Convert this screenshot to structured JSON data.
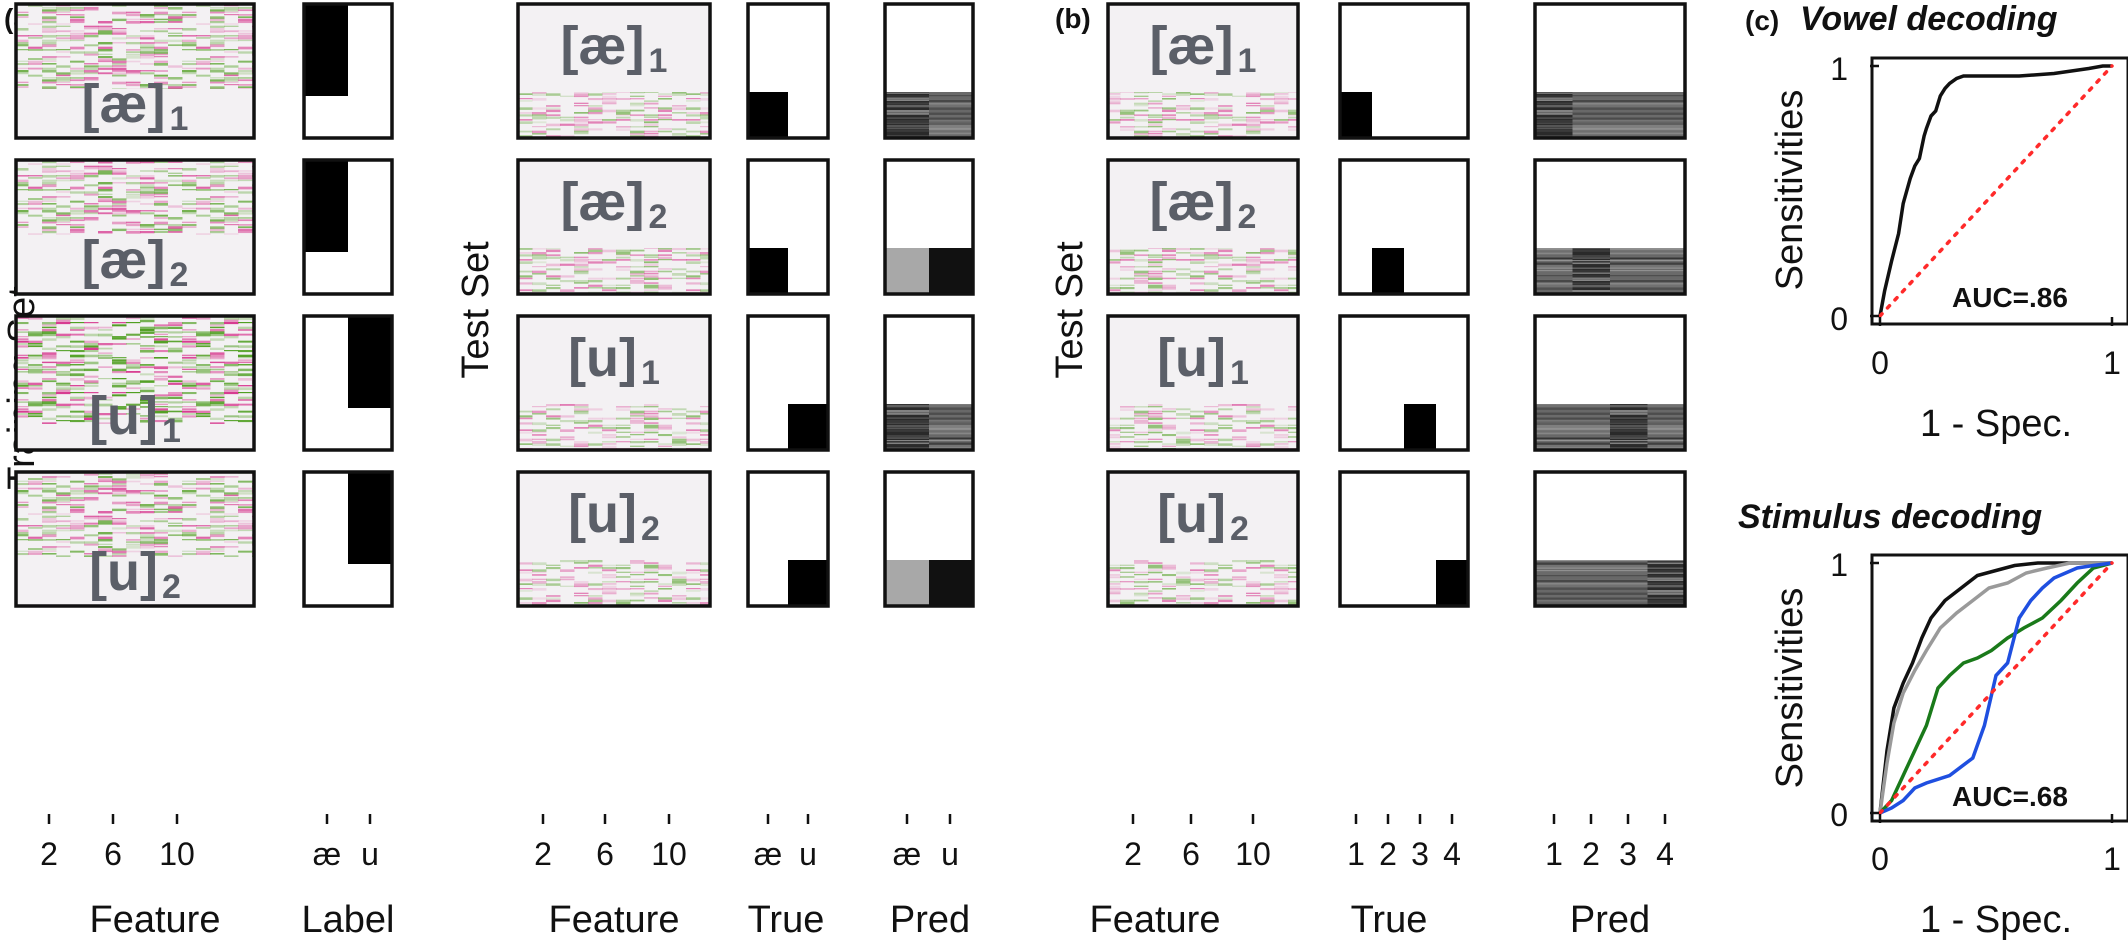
{
  "panel_labels": [
    "(a)",
    "(b)",
    "(c)"
  ],
  "colors": {
    "green": "#4a9c1a",
    "pink": "#d6338c",
    "background": "#f3f1f3",
    "frame": "#111111",
    "overlay_text": "#5b5f68",
    "chance_line": "#ff2a2a",
    "roc_series": [
      "#111111",
      "#9a9a9a",
      "#1a7a1a",
      "#1f4fe0"
    ]
  },
  "panel_a": {
    "training_label": "Training Set",
    "test_label": "Test Set",
    "training_overlays": [
      {
        "symbol": "[æ]",
        "sub": "1"
      },
      {
        "symbol": "[æ]",
        "sub": "2"
      },
      {
        "symbol": "[u]",
        "sub": "1"
      },
      {
        "symbol": "[u]",
        "sub": "2"
      }
    ],
    "test_overlays": [
      {
        "symbol": "[æ]",
        "sub": "1"
      },
      {
        "symbol": "[æ]",
        "sub": "2"
      },
      {
        "symbol": "[u]",
        "sub": "1"
      },
      {
        "symbol": "[u]",
        "sub": "2"
      }
    ],
    "feature_ticks": [
      "2",
      "6",
      "10"
    ],
    "label_ticks": [
      "æ",
      "u"
    ],
    "true_ticks": [
      "æ",
      "u"
    ],
    "pred_ticks": [
      "æ",
      "u"
    ],
    "xlabels": {
      "feature": "Feature",
      "label": "Label",
      "feature2": "Feature",
      "true": "True",
      "pred": "Pred"
    }
  },
  "panel_b": {
    "test_label": "Test Set",
    "overlays": [
      {
        "symbol": "[æ]",
        "sub": "1"
      },
      {
        "symbol": "[æ]",
        "sub": "2"
      },
      {
        "symbol": "[u]",
        "sub": "1"
      },
      {
        "symbol": "[u]",
        "sub": "2"
      }
    ],
    "feature_ticks": [
      "2",
      "6",
      "10"
    ],
    "true_ticks": [
      "1",
      "2",
      "3",
      "4"
    ],
    "pred_ticks": [
      "1",
      "2",
      "3",
      "4"
    ],
    "xlabels": {
      "feature": "Feature",
      "true": "True",
      "pred": "Pred"
    }
  },
  "chart_data": [
    {
      "type": "line",
      "title": "Vowel decoding",
      "xlabel": "1 - Spec.",
      "ylabel": "Sensitivities",
      "xlim": [
        0,
        1
      ],
      "ylim": [
        0,
        1
      ],
      "xticks": [
        "0",
        "1"
      ],
      "yticks": [
        "0",
        "1"
      ],
      "annotation": "AUC=.86",
      "series": [
        {
          "x": [
            0,
            0.02,
            0.05,
            0.08,
            0.1,
            0.13,
            0.15,
            0.17,
            0.19,
            0.2,
            0.22,
            0.24,
            0.26,
            0.28,
            0.3,
            0.33,
            0.36,
            0.42,
            0.6,
            0.75,
            0.9,
            0.96,
            1.0
          ],
          "y": [
            0,
            0.1,
            0.22,
            0.33,
            0.45,
            0.55,
            0.6,
            0.63,
            0.72,
            0.75,
            0.8,
            0.82,
            0.88,
            0.91,
            0.93,
            0.95,
            0.96,
            0.96,
            0.96,
            0.97,
            0.99,
            1.0,
            1.0
          ],
          "color": "#111111"
        },
        {
          "x": [
            0,
            1
          ],
          "y": [
            0,
            1
          ],
          "color": "#ff2a2a",
          "style": "dotted"
        }
      ]
    },
    {
      "type": "line",
      "title": "Stimulus decoding",
      "xlabel": "1 - Spec.",
      "ylabel": "Sensitivities",
      "xlim": [
        0,
        1
      ],
      "ylim": [
        0,
        1
      ],
      "xticks": [
        "0",
        "1"
      ],
      "yticks": [
        "0",
        "1"
      ],
      "annotation": "AUC=.68",
      "series": [
        {
          "x": [
            0,
            0.03,
            0.06,
            0.1,
            0.14,
            0.18,
            0.22,
            0.28,
            0.35,
            0.42,
            0.5,
            0.58,
            0.68,
            0.8,
            1.0
          ],
          "y": [
            0,
            0.25,
            0.42,
            0.52,
            0.6,
            0.7,
            0.78,
            0.85,
            0.9,
            0.95,
            0.97,
            0.99,
            1.0,
            1.0,
            1.0
          ],
          "color": "#111111"
        },
        {
          "x": [
            0,
            0.03,
            0.06,
            0.1,
            0.15,
            0.2,
            0.26,
            0.33,
            0.4,
            0.47,
            0.55,
            0.63,
            0.72,
            0.82,
            1.0
          ],
          "y": [
            0,
            0.2,
            0.36,
            0.48,
            0.57,
            0.65,
            0.74,
            0.8,
            0.85,
            0.9,
            0.92,
            0.96,
            0.98,
            1.0,
            1.0
          ],
          "color": "#9a9a9a"
        },
        {
          "x": [
            0,
            0.05,
            0.1,
            0.15,
            0.2,
            0.25,
            0.3,
            0.36,
            0.42,
            0.48,
            0.55,
            0.62,
            0.7,
            0.78,
            0.85,
            0.92,
            1.0
          ],
          "y": [
            0,
            0.05,
            0.15,
            0.25,
            0.35,
            0.5,
            0.55,
            0.6,
            0.62,
            0.65,
            0.7,
            0.74,
            0.78,
            0.85,
            0.92,
            0.98,
            1.0
          ],
          "color": "#1a7a1a"
        },
        {
          "x": [
            0,
            0.05,
            0.1,
            0.15,
            0.2,
            0.3,
            0.4,
            0.45,
            0.5,
            0.55,
            0.6,
            0.65,
            0.7,
            0.75,
            0.8,
            0.85,
            0.92,
            1.0
          ],
          "y": [
            0,
            0.02,
            0.05,
            0.1,
            0.12,
            0.15,
            0.22,
            0.35,
            0.55,
            0.6,
            0.78,
            0.85,
            0.9,
            0.94,
            0.96,
            0.98,
            0.99,
            1.0
          ],
          "color": "#1f4fe0"
        },
        {
          "x": [
            0,
            1
          ],
          "y": [
            0,
            1
          ],
          "color": "#ff2a2a",
          "style": "dotted"
        }
      ]
    }
  ]
}
